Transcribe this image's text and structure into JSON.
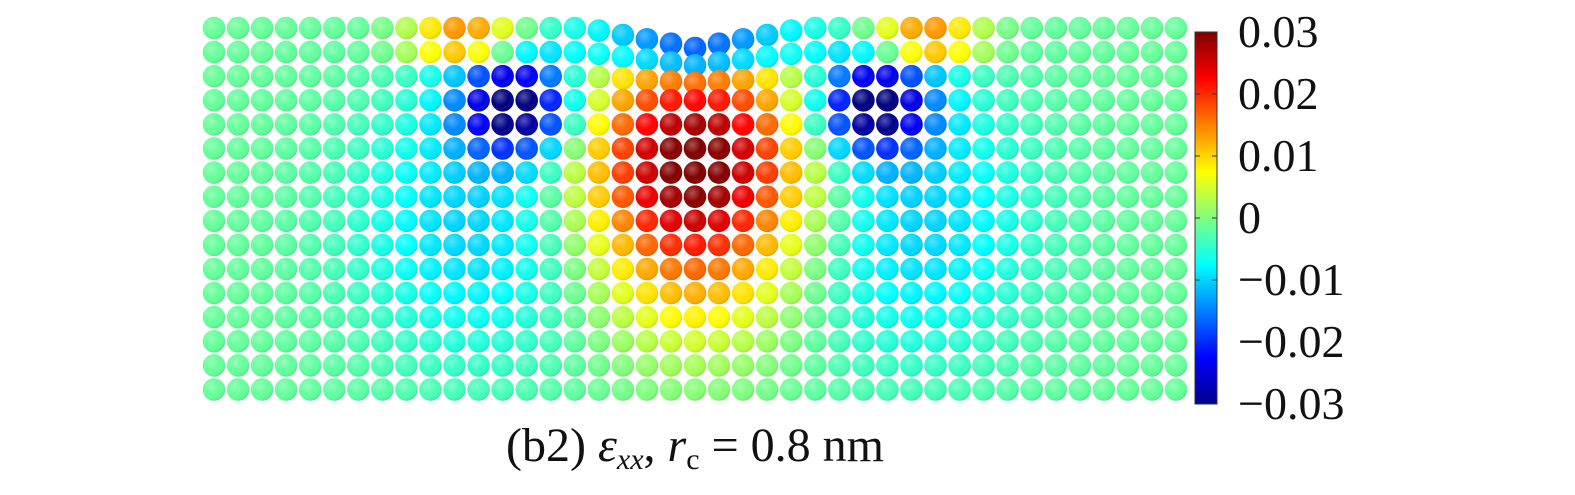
{
  "chart_data": {
    "type": "heatmap",
    "title": "",
    "xlabel": "",
    "ylabel": "",
    "colormap": "jet",
    "colorbar": {
      "min": -0.03,
      "max": 0.03,
      "ticks": [
        {
          "value": 0.03,
          "label": "0.03"
        },
        {
          "value": 0.02,
          "label": "0.02"
        },
        {
          "value": 0.01,
          "label": "0.01"
        },
        {
          "value": 0,
          "label": "0"
        },
        {
          "value": -0.01,
          "label": "−0.01"
        },
        {
          "value": -0.02,
          "label": "−0.02"
        },
        {
          "value": -0.03,
          "label": "−0.03"
        }
      ],
      "placement": "right"
    },
    "grid": {
      "columns": 41,
      "rows": 16
    },
    "field_features": [
      {
        "type": "tension-core",
        "column": 20,
        "row": 5,
        "value": 0.03
      },
      {
        "type": "compression-lobe",
        "column": 12.5,
        "row": 3,
        "value": -0.025
      },
      {
        "type": "compression-lobe",
        "column": 27.5,
        "row": 3,
        "value": -0.025
      },
      {
        "type": "surface-tension-edge",
        "column": 10,
        "row": 0,
        "value": 0.015
      },
      {
        "type": "surface-tension-edge",
        "column": 30,
        "row": 0,
        "value": 0.015
      },
      {
        "type": "surface-indent",
        "column_range": [
          15,
          24
        ],
        "value": -0.01
      }
    ]
  },
  "caption": {
    "label": "(b2) ",
    "symbol": "ε",
    "symbol_sub": "xx",
    "separator": ", ",
    "radius_symbol": "r",
    "radius_sub": "c",
    "radius_value": " = 0.8 nm"
  },
  "colors": {
    "background": "#ffffff",
    "text": "#111111"
  }
}
